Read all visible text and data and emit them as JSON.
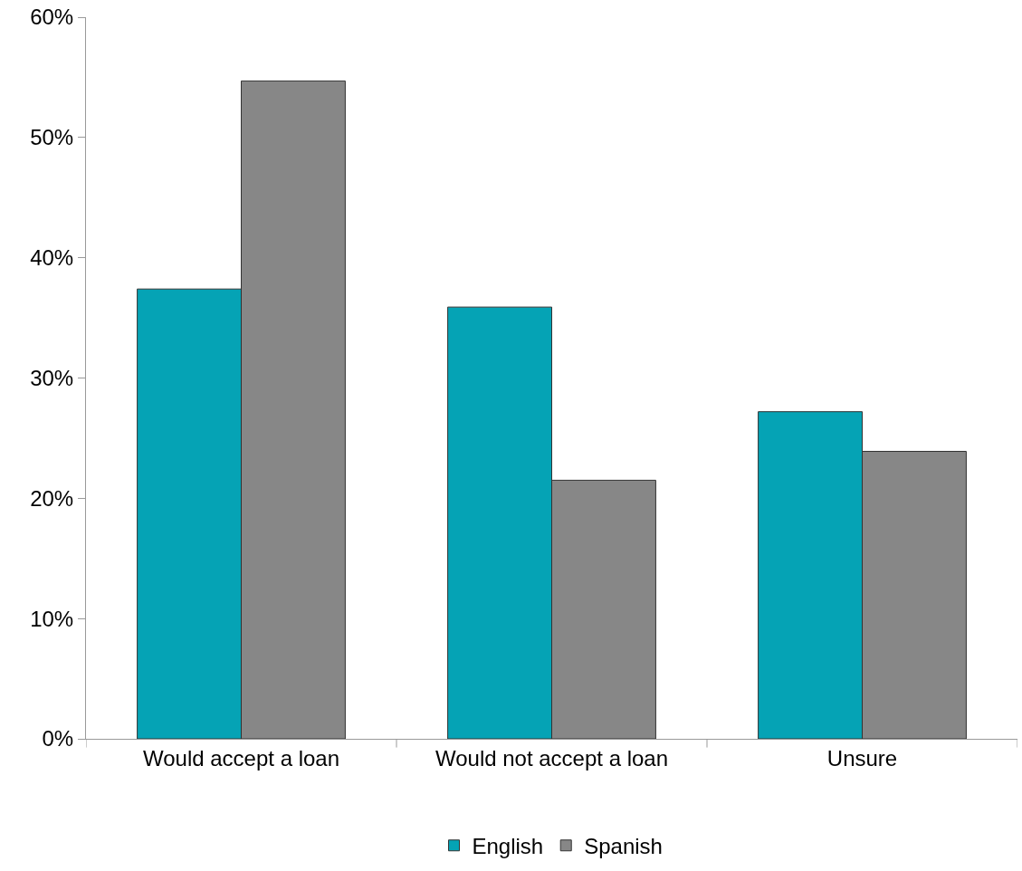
{
  "chart_data": {
    "type": "bar",
    "categories": [
      "Would accept a loan",
      "Would not accept a loan",
      "Unsure"
    ],
    "series": [
      {
        "name": "English",
        "color": "#05a3b5",
        "values": [
          37.4,
          35.9,
          27.2
        ]
      },
      {
        "name": "Spanish",
        "color": "#878787",
        "values": [
          54.7,
          21.5,
          23.9
        ]
      }
    ],
    "ylim": [
      0,
      60
    ],
    "yticks": [
      {
        "value": 0,
        "label": "0%"
      },
      {
        "value": 10,
        "label": "10%"
      },
      {
        "value": 20,
        "label": "20%"
      },
      {
        "value": 30,
        "label": "30%"
      },
      {
        "value": 40,
        "label": "40%"
      },
      {
        "value": 50,
        "label": "50%"
      },
      {
        "value": 60,
        "label": "60%"
      }
    ],
    "grid": false,
    "legend": "bottom"
  }
}
